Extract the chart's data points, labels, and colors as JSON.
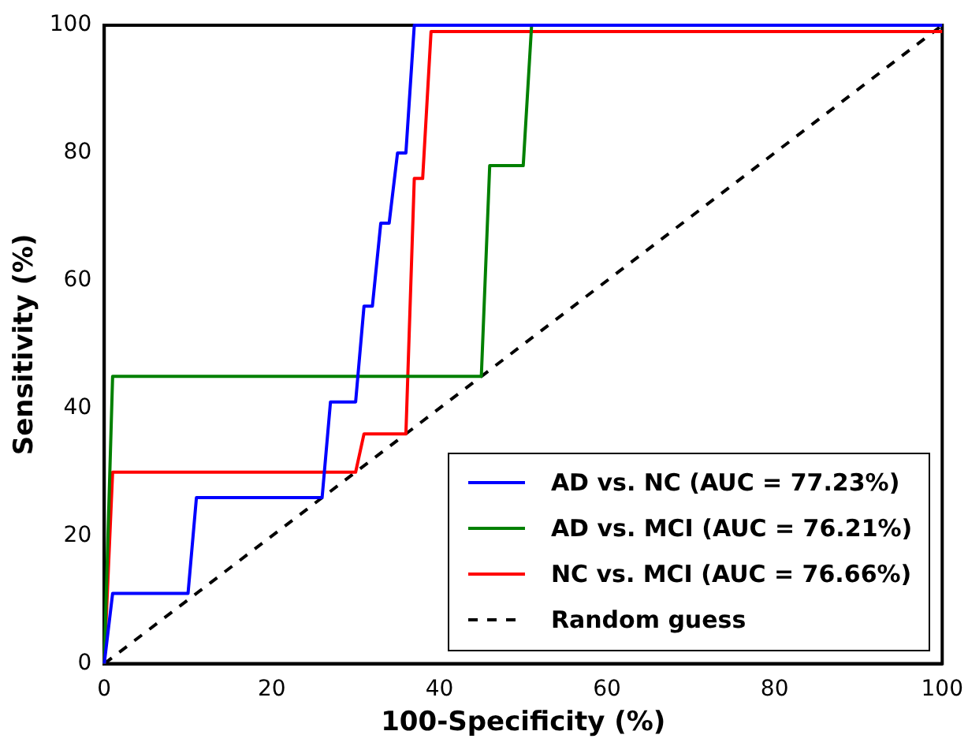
{
  "chart_data": {
    "type": "line",
    "xlabel": "100-Specificity (%)",
    "ylabel": "Sensitivity (%)",
    "xlim": [
      0,
      100
    ],
    "ylim": [
      0,
      100
    ],
    "xticks": [
      0,
      20,
      40,
      60,
      80,
      100
    ],
    "yticks": [
      0,
      20,
      40,
      60,
      80,
      100
    ],
    "grid": false,
    "legend": "bottom right",
    "marker": "none",
    "series": [
      {
        "name": "AD vs. NC (AUC = 77.23%)",
        "color": "#0000ff",
        "x": [
          0,
          1,
          10,
          11,
          26,
          27,
          30,
          31,
          32,
          33,
          34,
          35,
          36,
          37,
          100
        ],
        "values": [
          0,
          11,
          11,
          26,
          26,
          41,
          41,
          56,
          56,
          69,
          69,
          80,
          80,
          100,
          100
        ]
      },
      {
        "name": "AD vs. MCI (AUC = 76.21%)",
        "color": "#008000",
        "x": [
          0,
          1,
          45,
          46,
          50,
          51,
          100
        ],
        "values": [
          0,
          45,
          45,
          78,
          78,
          100,
          100
        ]
      },
      {
        "name": "NC vs. MCI (AUC = 76.66%)",
        "color": "#ff0000",
        "x": [
          0,
          1,
          30,
          31,
          36,
          37,
          38,
          39,
          100
        ],
        "values": [
          0,
          30,
          30,
          36,
          36,
          76,
          76,
          99,
          99
        ]
      },
      {
        "name": "Random guess",
        "color": "#000000",
        "line_style": "dashed",
        "x": [
          0,
          100
        ],
        "values": [
          0,
          100
        ]
      }
    ]
  }
}
